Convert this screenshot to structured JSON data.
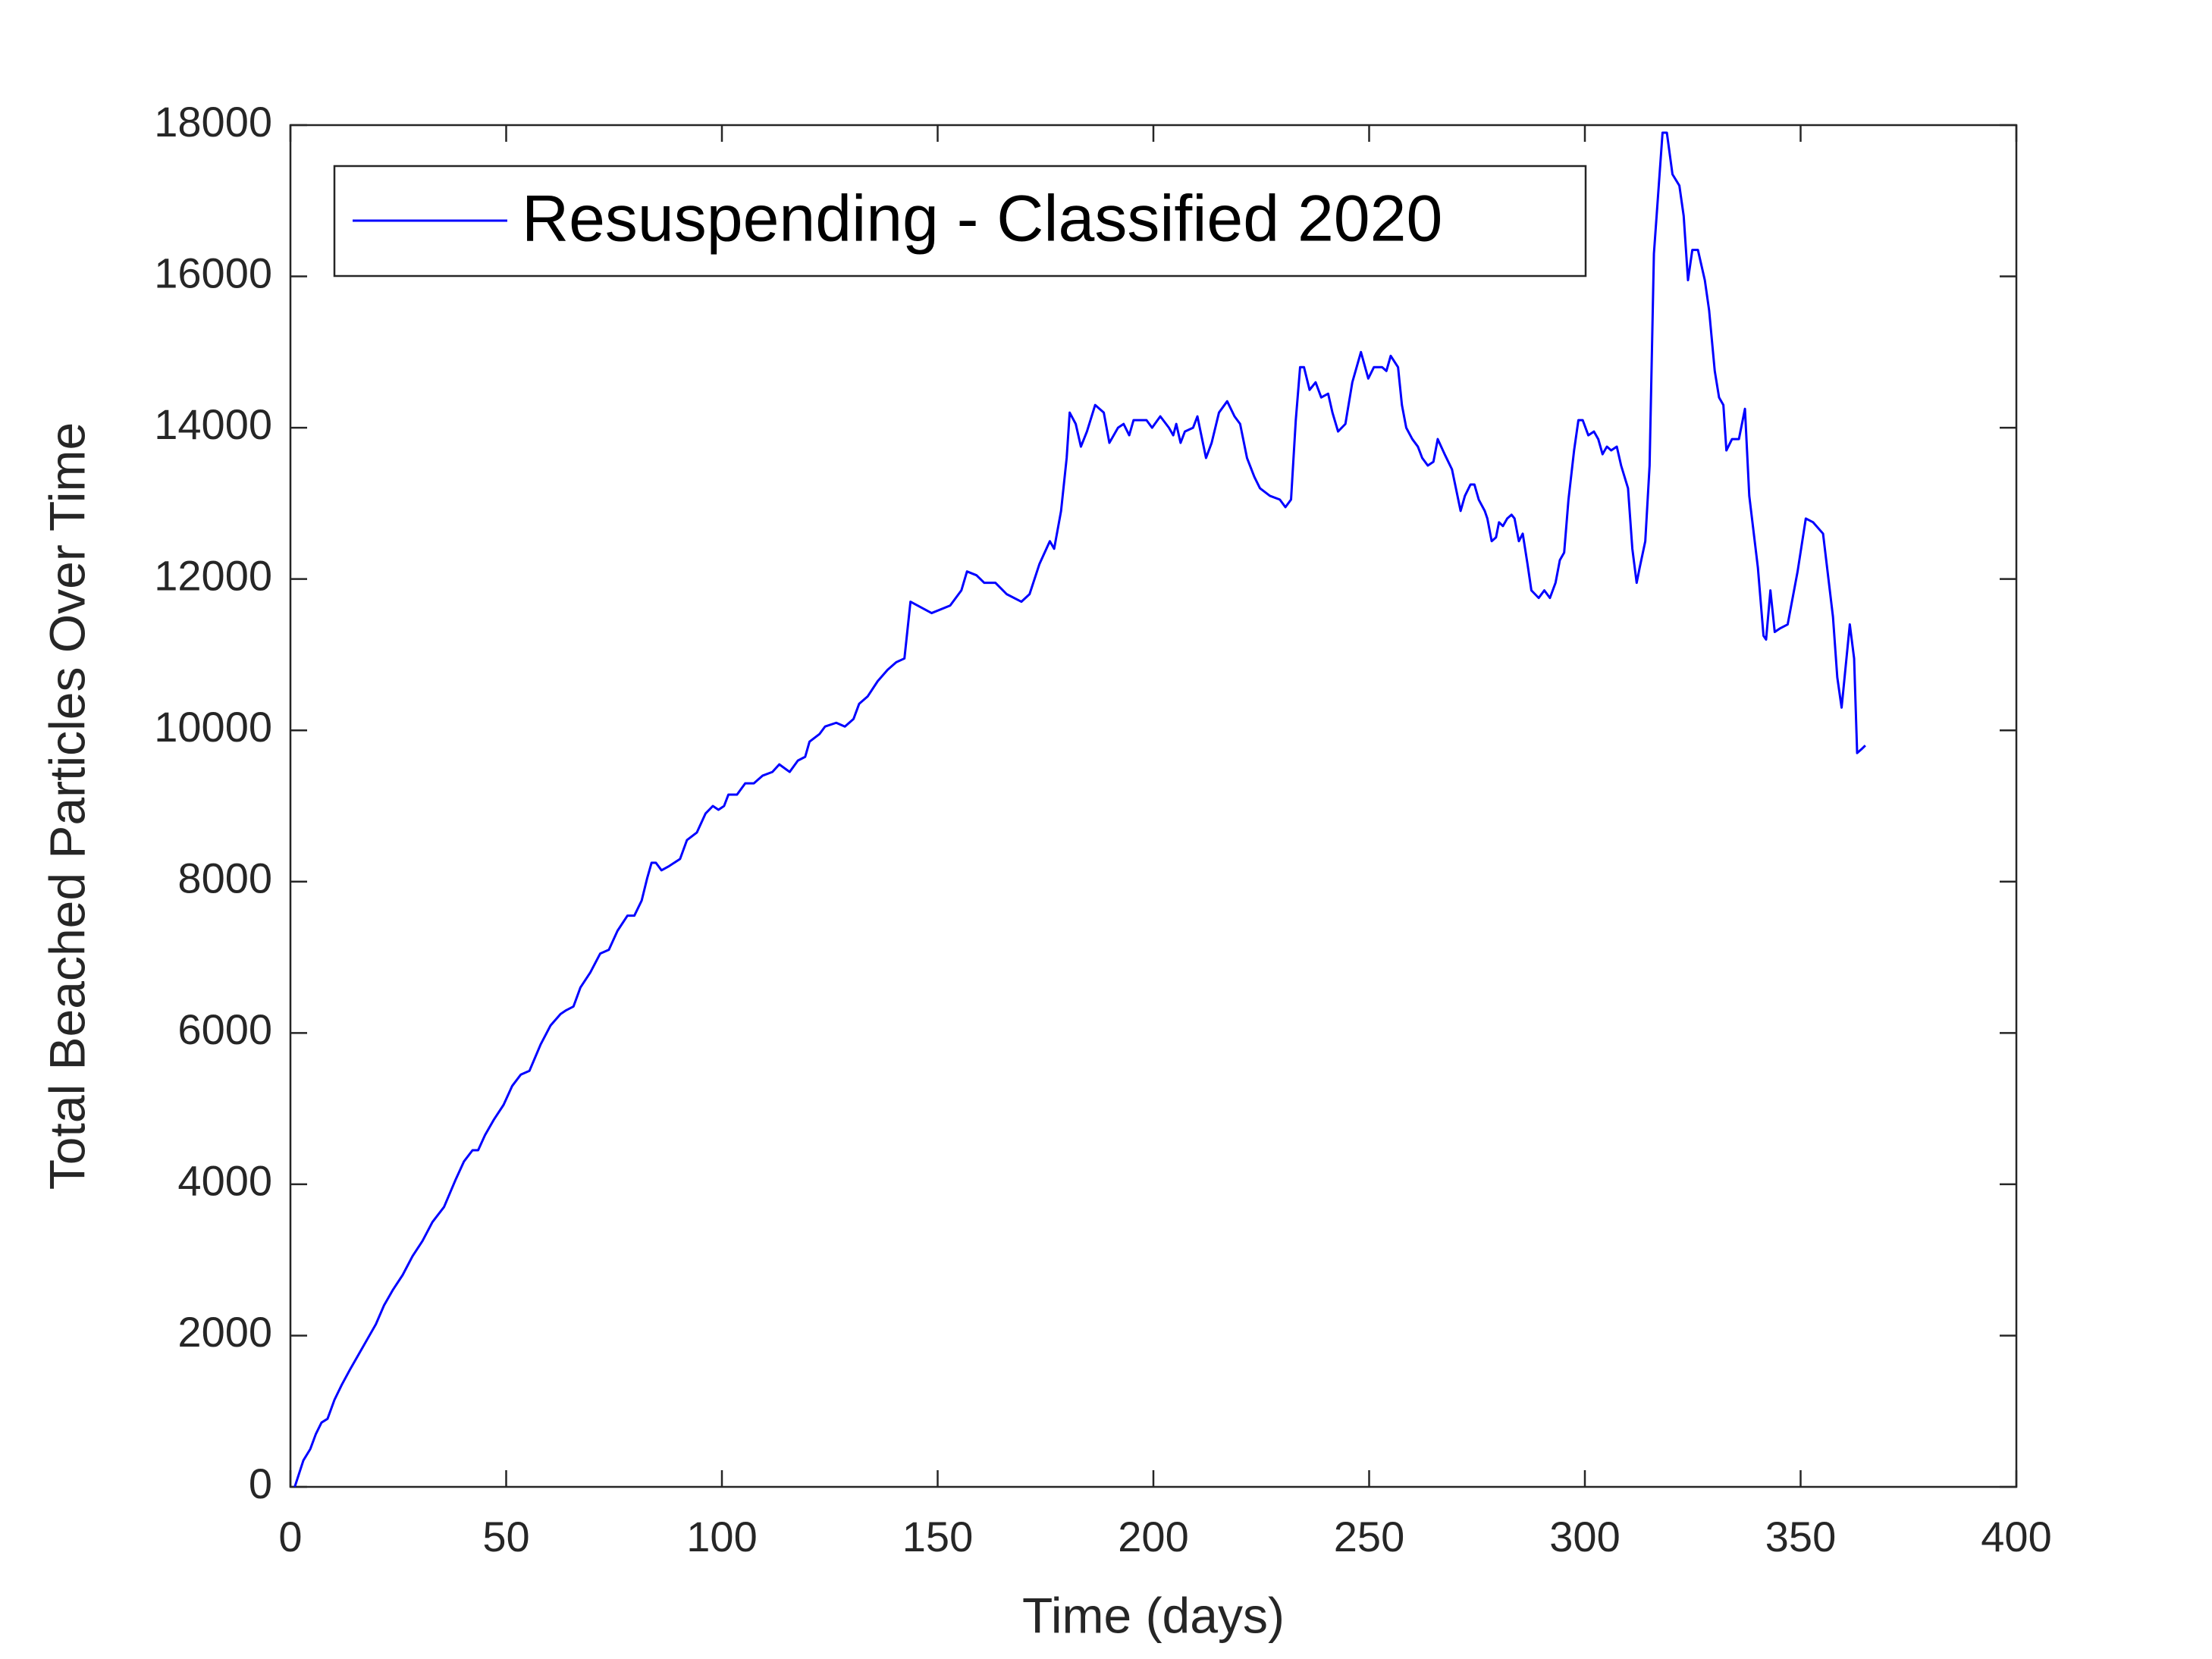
{
  "chart_data": {
    "type": "line",
    "xlabel": "Time (days)",
    "ylabel": "Total Beached Particles Over Time",
    "xlim": [
      0,
      400
    ],
    "xticks": [
      0,
      50,
      100,
      150,
      200,
      250,
      300,
      350,
      400
    ],
    "ylim": [
      0,
      18000
    ],
    "yticks": [
      0,
      2000,
      4000,
      6000,
      8000,
      10000,
      12000,
      14000,
      16000,
      18000
    ],
    "legend": "upper left",
    "x": [
      1,
      3,
      4.6,
      5.9,
      7.2,
      8.6,
      10.2,
      11.9,
      13.8,
      15.8,
      17.8,
      19.8,
      21.7,
      23.7,
      26,
      28.3,
      30.6,
      32.9,
      35.6,
      38.2,
      40.2,
      42.2,
      43.5,
      45.1,
      47.1,
      49.4,
      51.4,
      53.4,
      55.4,
      58,
      60.3,
      62.6,
      63.9,
      65.6,
      67.2,
      69.5,
      71.8,
      73.8,
      75.8,
      78.1,
      79.7,
      81.4,
      82.7,
      83.7,
      84.7,
      86,
      87.6,
      90.3,
      91.9,
      94.2,
      96.2,
      97.9,
      99.2,
      100.5,
      101.5,
      103.5,
      105.4,
      107.4,
      109.4,
      111.7,
      113.3,
      115.7,
      117.6,
      119.3,
      120.3,
      122.6,
      123.9,
      126.5,
      128.5,
      130.5,
      131.8,
      133.8,
      136.1,
      138.4,
      140.4,
      142.3,
      143.7,
      148.6,
      152.9,
      155.5,
      156.8,
      159,
      160.8,
      163.4,
      166,
      169.4,
      171.3,
      173.6,
      176,
      177,
      178.6,
      179.9,
      180.6,
      182,
      183.2,
      184.6,
      186.5,
      188.5,
      189.8,
      191.8,
      193.1,
      194.4,
      195.4,
      198.4,
      199.7,
      201.6,
      203.6,
      204.6,
      205.3,
      206.3,
      207.3,
      209.2,
      210.2,
      212.2,
      213.5,
      215.2,
      217.1,
      218.8,
      220.1,
      221.7,
      223.4,
      224.7,
      227,
      229.3,
      230.6,
      231.9,
      233,
      234,
      234.9,
      236.2,
      237.6,
      238.9,
      240.5,
      241.5,
      242.8,
      244.5,
      246.1,
      248.1,
      249.8,
      251.1,
      253,
      254,
      255,
      256.7,
      257.6,
      258.6,
      260,
      261.3,
      262.3,
      263.6,
      264.9,
      265.9,
      267.5,
      269.2,
      271.2,
      272.2,
      273.5,
      274.4,
      275.4,
      276.8,
      277.4,
      278.4,
      279.4,
      280.1,
      281,
      282,
      283,
      283.7,
      284.7,
      285.6,
      286.7,
      287.6,
      289.3,
      290.6,
      291.9,
      293.2,
      294.2,
      295.2,
      296.2,
      297.5,
      298.5,
      299.5,
      300.8,
      302.1,
      303.1,
      304.1,
      305.1,
      306.1,
      307.4,
      308.4,
      310,
      311,
      312,
      312.7,
      314,
      315,
      316,
      317,
      318,
      319,
      320.3,
      321.9,
      322.9,
      323.9,
      324.9,
      326.2,
      327.8,
      328.8,
      330.1,
      331.1,
      332.1,
      332.8,
      334.1,
      335.7,
      337.1,
      338.1,
      340.1,
      341.4,
      342,
      343,
      344,
      345.3,
      347,
      349.3,
      351.2,
      352.9,
      355.2,
      357.5,
      358.5,
      359.5,
      361.4,
      362.4,
      363.1,
      364.1,
      365
    ],
    "series": [
      {
        "name": "Resuspending - Classified 2020",
        "color": "#0000ff",
        "values": [
          0,
          350,
          500,
          700,
          850,
          900,
          1150,
          1350,
          1550,
          1750,
          1950,
          2150,
          2400,
          2600,
          2800,
          3050,
          3250,
          3500,
          3700,
          4050,
          4300,
          4450,
          4450,
          4650,
          4850,
          5050,
          5300,
          5450,
          5500,
          5850,
          6100,
          6250,
          6300,
          6350,
          6600,
          6800,
          7050,
          7100,
          7350,
          7550,
          7550,
          7750,
          8050,
          8250,
          8250,
          8150,
          8200,
          8300,
          8550,
          8650,
          8900,
          9000,
          8950,
          9000,
          9150,
          9150,
          9300,
          9300,
          9400,
          9450,
          9550,
          9450,
          9600,
          9650,
          9850,
          9950,
          10050,
          10100,
          10050,
          10150,
          10350,
          10450,
          10650,
          10800,
          10900,
          10950,
          11700,
          11550,
          11650,
          11850,
          12100,
          12050,
          11950,
          11950,
          11800,
          11700,
          11800,
          12200,
          12500,
          12400,
          12900,
          13600,
          14200,
          14050,
          13750,
          13950,
          14300,
          14200,
          13800,
          14000,
          14050,
          13900,
          14100,
          14100,
          14000,
          14150,
          14000,
          13900,
          14050,
          13800,
          13950,
          14000,
          14150,
          13600,
          13800,
          14200,
          14350,
          14150,
          14050,
          13600,
          13350,
          13200,
          13100,
          13050,
          12950,
          13050,
          14100,
          14800,
          14800,
          14500,
          14600,
          14400,
          14450,
          14200,
          13950,
          14050,
          14600,
          15000,
          14650,
          14800,
          14800,
          14750,
          14950,
          14800,
          14300,
          14000,
          13850,
          13750,
          13600,
          13500,
          13550,
          13850,
          13650,
          13450,
          12900,
          13100,
          13250,
          13250,
          13050,
          12900,
          12800,
          12500,
          12550,
          12750,
          12700,
          12800,
          12850,
          12800,
          12500,
          12600,
          12200,
          11850,
          11750,
          11850,
          11750,
          11950,
          12250,
          12350,
          13050,
          13700,
          14100,
          14100,
          13900,
          13950,
          13850,
          13650,
          13750,
          13700,
          13750,
          13500,
          13200,
          12400,
          11950,
          12150,
          12500,
          13500,
          16300,
          17100,
          17900,
          17900,
          17350,
          17200,
          16800,
          15950,
          16350,
          16350,
          15950,
          15550,
          14750,
          14400,
          14300,
          13700,
          13850,
          13850,
          14250,
          13100,
          12150,
          11250,
          11200,
          11850,
          11300,
          11350,
          11400,
          12100,
          12800,
          12750,
          12600,
          11500,
          10700,
          10300,
          11400,
          10950,
          9700,
          9750,
          9800
        ]
      }
    ]
  }
}
